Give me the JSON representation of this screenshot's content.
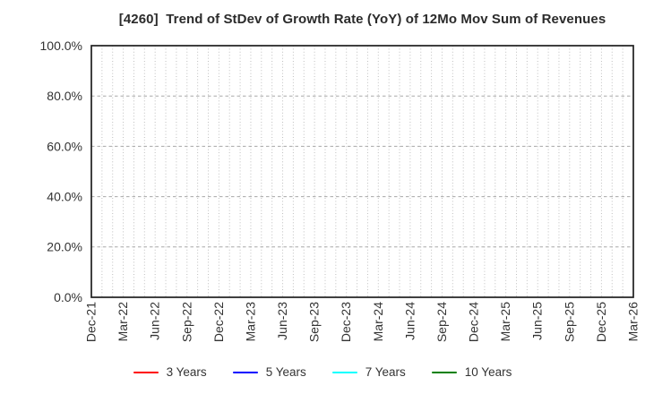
{
  "chart_data": {
    "type": "line",
    "title": "[4260]  Trend of StDev of Growth Rate (YoY) of 12Mo Mov Sum of Revenues",
    "xlabel": "",
    "ylabel": "",
    "ylim": [
      0,
      100
    ],
    "y_unit": "%",
    "y_tick_labels": [
      "0.0%",
      "20.0%",
      "40.0%",
      "60.0%",
      "80.0%",
      "100.0%"
    ],
    "x_tick_labels": [
      "Dec-21",
      "Mar-22",
      "Jun-22",
      "Sep-22",
      "Dec-22",
      "Mar-23",
      "Jun-23",
      "Sep-23",
      "Dec-23",
      "Mar-24",
      "Jun-24",
      "Sep-24",
      "Dec-24",
      "Mar-25",
      "Jun-25",
      "Sep-25",
      "Dec-25",
      "Mar-26"
    ],
    "x_minor_gridline_interval": "monthly",
    "grid": true,
    "legend_position": "bottom",
    "plot_is_empty": true,
    "series": [
      {
        "name": "3 Years",
        "color": "#ff0000",
        "values": []
      },
      {
        "name": "5 Years",
        "color": "#0000ff",
        "values": []
      },
      {
        "name": "7 Years",
        "color": "#00ffff",
        "values": []
      },
      {
        "name": "10 Years",
        "color": "#008000",
        "values": []
      }
    ],
    "style": {
      "border_color": "#1f1f1f",
      "h_grid_color": "#a8a8a8",
      "v_grid_color": "#bfbfbf",
      "tick_label_color": "#333333",
      "title_color": "#2b2b2b",
      "background": "#ffffff"
    }
  }
}
